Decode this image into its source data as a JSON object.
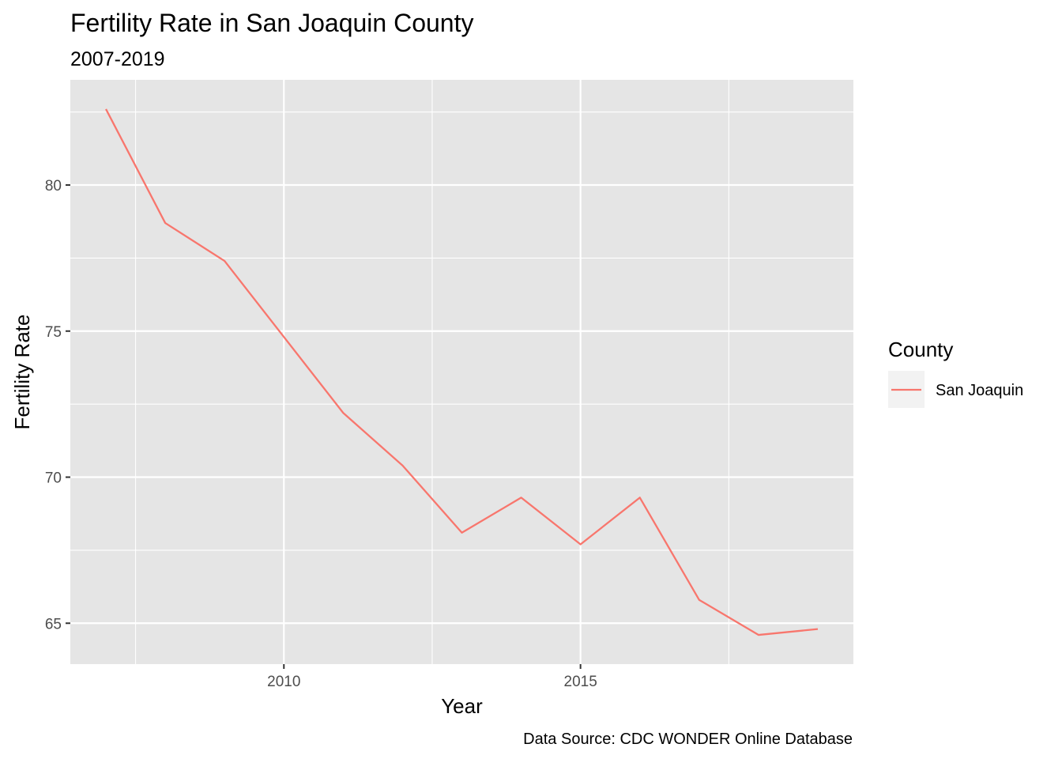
{
  "chart_data": {
    "type": "line",
    "title": "Fertility Rate in San Joaquin County",
    "subtitle": "2007-2019",
    "xlabel": "Year",
    "ylabel": "Fertility Rate",
    "caption": "Data Source: CDC WONDER Online Database",
    "x": [
      2007,
      2008,
      2009,
      2010,
      2011,
      2012,
      2013,
      2014,
      2015,
      2016,
      2017,
      2018,
      2019
    ],
    "series": [
      {
        "name": "San Joaquin",
        "color": "#F8766D",
        "values": [
          82.6,
          78.7,
          77.4,
          74.8,
          72.2,
          70.4,
          68.1,
          69.3,
          67.7,
          69.3,
          65.8,
          64.6,
          64.8
        ]
      }
    ],
    "xlim": [
      2006.4,
      2019.6
    ],
    "ylim": [
      63.6,
      83.6
    ],
    "x_ticks": [
      2010,
      2015
    ],
    "x_minor_ticks": [
      2007.5,
      2012.5,
      2017.5
    ],
    "y_ticks": [
      65,
      70,
      75,
      80
    ],
    "y_minor_ticks": [
      67.5,
      72.5,
      77.5,
      82.5
    ],
    "grid": true,
    "panel_background": "#E5E5E5",
    "legend": {
      "title": "County",
      "position": "right"
    }
  }
}
